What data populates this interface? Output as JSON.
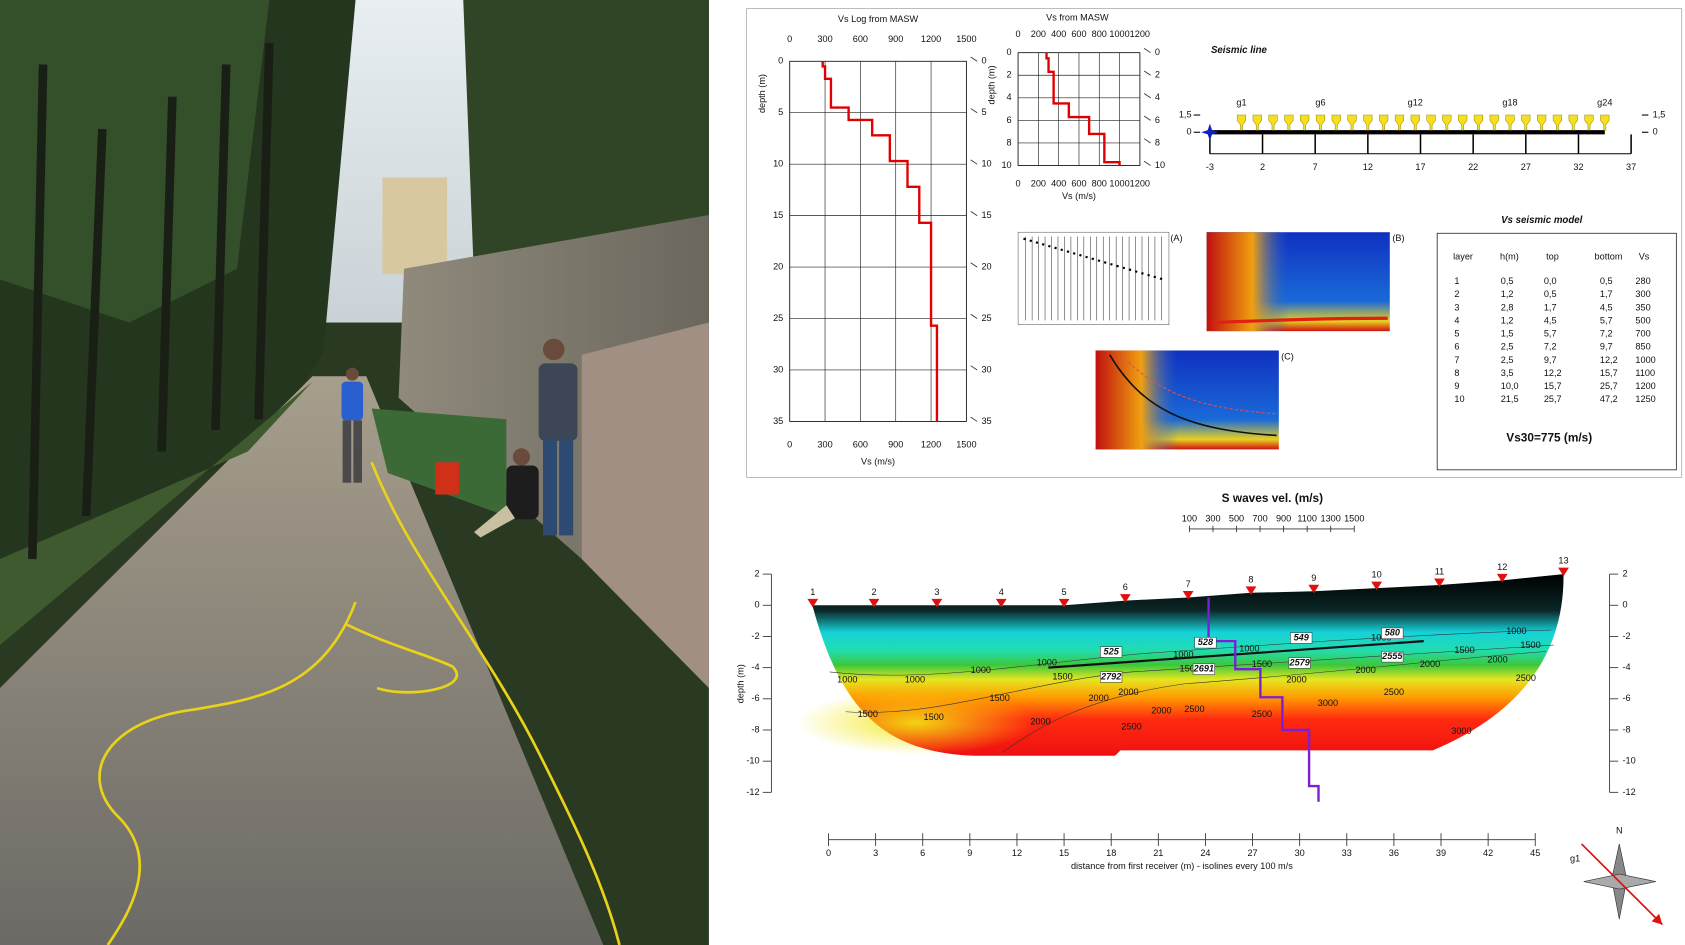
{
  "chart_data": [
    {
      "type": "line",
      "title": "Vs Log from MASW",
      "xlabel": "Vs (m/s)",
      "ylabel": "depth (m)",
      "xlim": [
        0,
        1500
      ],
      "xticks": [
        0,
        300,
        600,
        900,
        1200,
        1500
      ],
      "ylim": [
        0,
        35
      ],
      "yticks": [
        0,
        5,
        10,
        15,
        20,
        25,
        30,
        35
      ],
      "grid": true,
      "series": [
        {
          "color": "#e00000",
          "values": [
            280,
            280,
            300,
            300,
            350,
            350,
            500,
            500,
            700,
            700,
            850,
            850,
            1000,
            1000,
            1100,
            1100,
            1200,
            1200,
            1250,
            1250
          ],
          "depth": [
            0,
            0.5,
            0.5,
            1.7,
            1.7,
            4.5,
            4.5,
            5.7,
            5.7,
            7.2,
            7.2,
            9.7,
            9.7,
            12.2,
            12.2,
            15.7,
            15.7,
            25.7,
            25.7,
            35
          ]
        }
      ]
    },
    {
      "type": "line",
      "title": "Vs  from MASW",
      "xlabel": "Vs (m/s)",
      "ylabel": "depth (m)",
      "xlim": [
        0,
        1200
      ],
      "xticks": [
        0,
        200,
        400,
        600,
        800,
        1000,
        1200
      ],
      "ylim": [
        0,
        10
      ],
      "yticks": [
        0,
        2,
        4,
        6,
        8,
        10
      ],
      "grid": true,
      "series": [
        {
          "color": "#e00000",
          "values": [
            280,
            280,
            300,
            300,
            350,
            350,
            500,
            500,
            700,
            700,
            850,
            850,
            1000,
            1000
          ],
          "depth": [
            0,
            0.5,
            0.5,
            1.7,
            1.7,
            4.5,
            4.5,
            5.7,
            5.7,
            7.2,
            7.2,
            9.7,
            9.7,
            10
          ]
        }
      ]
    },
    {
      "type": "array",
      "title": "Seismic line",
      "xlim": [
        -3,
        37
      ],
      "xticks": [
        -3,
        2,
        7,
        12,
        17,
        22,
        27,
        32,
        37
      ],
      "yticks": [
        {
          "value": 1.5,
          "label": "1,5"
        },
        0
      ],
      "source_x": -3,
      "source_color": "#1020c0",
      "geophone_color": "#f5e020",
      "geophones": {
        "x": [
          0,
          1.5,
          3,
          4.5,
          6,
          7.5,
          9,
          10.5,
          12,
          13.5,
          15,
          16.5,
          18,
          19.5,
          21,
          22.5,
          24,
          25.5,
          27,
          28.5,
          30,
          31.5,
          33,
          34.5
        ],
        "labels": [
          "g1",
          null,
          null,
          null,
          null,
          "g6",
          null,
          null,
          null,
          null,
          null,
          "g12",
          null,
          null,
          null,
          null,
          null,
          "g18",
          null,
          null,
          null,
          null,
          null,
          "g24"
        ]
      }
    },
    {
      "type": "contour",
      "title": "S waves vel. (m/s)",
      "clim": [
        100,
        1500
      ],
      "cticks": [
        100,
        300,
        500,
        700,
        900,
        1100,
        1300,
        1500
      ],
      "xlabel": "distance from first receiver (m) - isolines every 100 m/s",
      "ylabel": "depth (m)",
      "xlim": [
        0,
        45
      ],
      "xticks": [
        0,
        3,
        6,
        9,
        12,
        15,
        18,
        21,
        24,
        27,
        30,
        33,
        36,
        39,
        42,
        45
      ],
      "ylim": [
        -12,
        2
      ],
      "yticks": [
        2,
        0,
        -2,
        -4,
        -6,
        -8,
        -10,
        -12
      ],
      "receivers": {
        "labels": [
          "1",
          "2",
          "3",
          "4",
          "5",
          "6",
          "7",
          "8",
          "9",
          "10",
          "11",
          "12",
          "13"
        ],
        "x": [
          -1,
          2.9,
          6.9,
          11,
          15,
          18.9,
          22.9,
          26.9,
          30.9,
          34.9,
          38.9,
          42.9,
          46.8
        ],
        "elev": [
          0,
          0,
          0,
          0,
          0,
          0.3,
          0.5,
          0.8,
          0.9,
          1.1,
          1.3,
          1.6,
          2
        ],
        "color": "#e01010"
      },
      "contour_labels": {
        "x": [
          1.2,
          5.5,
          9.7,
          13.9,
          22.6,
          26.8,
          35.2,
          43.8,
          2.5,
          6.7,
          10.9,
          14.9,
          23,
          27.6,
          40.5,
          44.7,
          17.2,
          19.1,
          13.5,
          21.2,
          29.8,
          34.2,
          38.3,
          42.6,
          23.3,
          27.6,
          19.3,
          36,
          44.4,
          31.8,
          40.3
        ],
        "y": [
          -4.8,
          -4.8,
          -4.2,
          -3.7,
          -3.2,
          -2.8,
          -2.1,
          -1.7,
          -7,
          -7.2,
          -6,
          -4.6,
          -4.1,
          -3.8,
          -2.9,
          -2.6,
          -6,
          -5.6,
          -7.5,
          -6.8,
          -4.8,
          -4.2,
          -3.8,
          -3.5,
          -6.7,
          -7,
          -7.8,
          -5.6,
          -4.7,
          -6.3,
          -8.1
        ],
        "values": [
          1000,
          1000,
          1000,
          1000,
          1000,
          1000,
          1000,
          1000,
          1500,
          1500,
          1500,
          1500,
          1500,
          1500,
          1500,
          1500,
          2000,
          2000,
          2000,
          2000,
          2000,
          2000,
          2000,
          2000,
          2500,
          2500,
          2500,
          2500,
          2500,
          3000,
          3000
        ]
      },
      "annotations": {
        "x": [
          18,
          24,
          30.1,
          35.9,
          23.9,
          18,
          30,
          35.9
        ],
        "y": [
          -3,
          -2.4,
          -2.1,
          -1.8,
          -4.1,
          -4.6,
          -3.7,
          -3.3
        ],
        "values": [
          525,
          528,
          549,
          580,
          2691,
          2792,
          2579,
          2555
        ]
      },
      "refractor": {
        "x": [
          14,
          37.9
        ],
        "y": [
          -4,
          -2.3
        ]
      },
      "vs_profile": {
        "color": "#7a1fd6",
        "x": [
          24.2,
          24.2,
          25.9,
          25.9,
          27.5,
          27.5,
          28.9,
          28.9,
          30.6,
          30.6,
          31.2,
          31.2
        ],
        "y": [
          0.5,
          -2.3,
          -2.3,
          -4.1,
          -4.1,
          -5.9,
          -5.9,
          -8,
          -8,
          -11.6,
          -11.6,
          -12.6
        ]
      }
    }
  ],
  "panels": {
    "labels": [
      "(A)",
      "(B)",
      "(C)"
    ]
  },
  "table": {
    "title": "Vs seismic model",
    "header": [
      "layer",
      "h(m)",
      "top",
      "bottom",
      "Vs"
    ],
    "rows": [
      [
        "1",
        "0,5",
        "0,0",
        "0,5",
        "280"
      ],
      [
        "2",
        "1,2",
        "0,5",
        "1,7",
        "300"
      ],
      [
        "3",
        "2,8",
        "1,7",
        "4,5",
        "350"
      ],
      [
        "4",
        "1,2",
        "4,5",
        "5,7",
        "500"
      ],
      [
        "5",
        "1,5",
        "5,7",
        "7,2",
        "700"
      ],
      [
        "6",
        "2,5",
        "7,2",
        "9,7",
        "850"
      ],
      [
        "7",
        "2,5",
        "9,7",
        "12,2",
        "1000"
      ],
      [
        "8",
        "3,5",
        "12,2",
        "15,7",
        "1100"
      ],
      [
        "9",
        "10,0",
        "15,7",
        "25,7",
        "1200"
      ],
      [
        "10",
        "21,5",
        "25,7",
        "47,2",
        "1250"
      ]
    ],
    "footer": "Vs30=775 (m/s)"
  },
  "compass": {
    "north": "N",
    "arrow": "g1"
  }
}
